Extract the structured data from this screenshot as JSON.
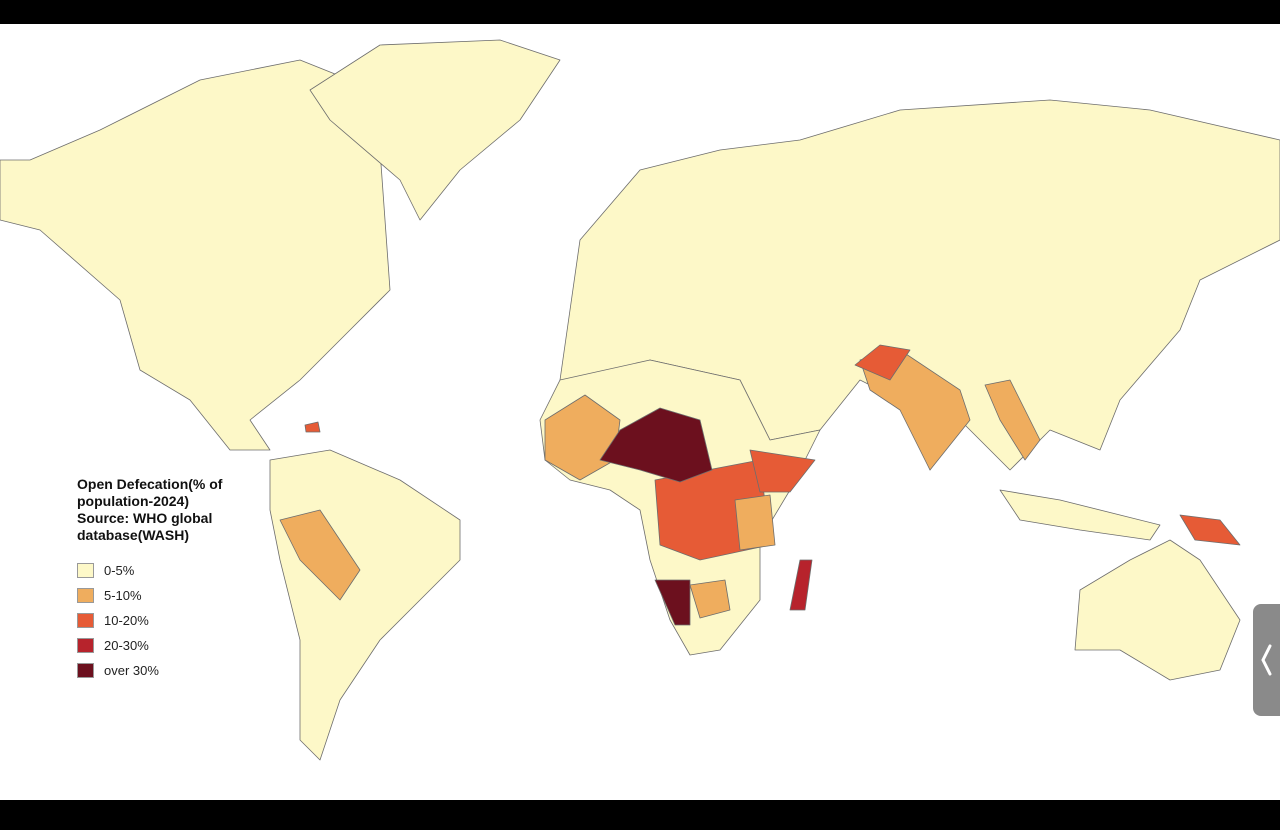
{
  "legend": {
    "title_lines": [
      "Open Defecation(% of",
      "population-2024)",
      "Source: WHO global",
      "database(WASH)"
    ],
    "items": [
      {
        "label": "0-5%",
        "color": "#fdf8c8"
      },
      {
        "label": "5-10%",
        "color": "#efad5e"
      },
      {
        "label": "10-20%",
        "color": "#e65b36"
      },
      {
        "label": "20-30%",
        "color": "#b7232c"
      },
      {
        "label": "over 30%",
        "color": "#6c101e"
      }
    ]
  }
}
